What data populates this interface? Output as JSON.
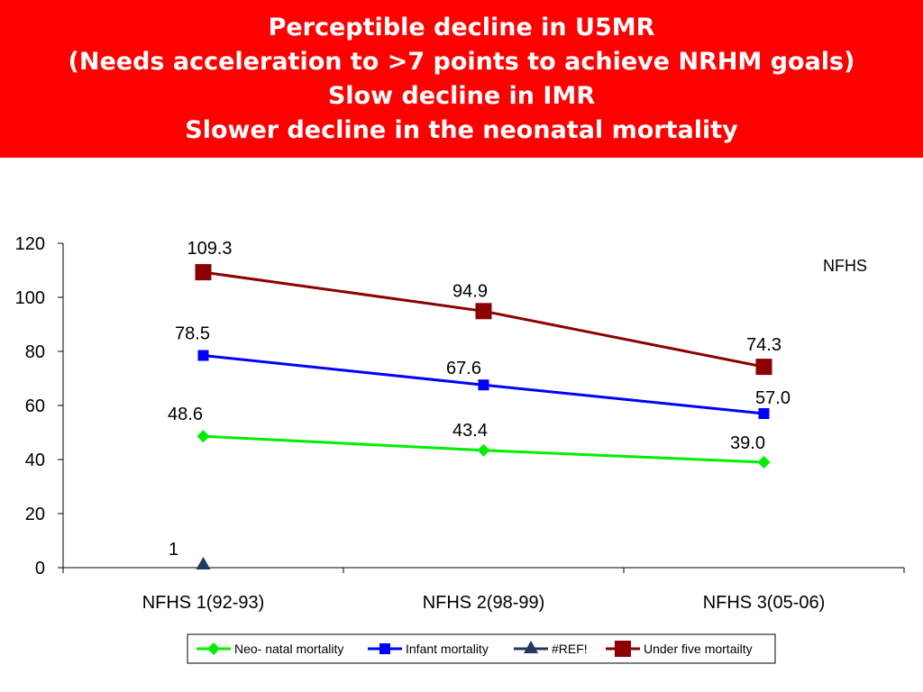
{
  "header": {
    "title_lines": [
      "Perceptible decline in U5MR",
      "(Needs acceleration to >7 points to achieve NRHM goals)",
      "Slow decline in IMR",
      "Slower decline in the neonatal mortality"
    ]
  },
  "colors": {
    "banner": "#ff0000",
    "neonatal": "#00ee00",
    "infant": "#0000ff",
    "ref": "#1f3a5f",
    "underfive": "#8b0000"
  },
  "chart_data": {
    "type": "line",
    "categories": [
      "NFHS 1(92-93)",
      "NFHS 2(98-99)",
      "NFHS 3(05-06)"
    ],
    "ylim": [
      0,
      120
    ],
    "yticks": [
      0,
      20,
      40,
      60,
      80,
      100,
      120
    ],
    "annotation": "NFHS",
    "legend_position": "bottom",
    "series": [
      {
        "name": "Neo- natal mortality",
        "values": [
          48.6,
          43.4,
          39.0
        ],
        "labels": [
          "48.6",
          "43.4",
          "39.0"
        ],
        "marker": "diamond",
        "color": "#00ee00"
      },
      {
        "name": "Infant mortality",
        "values": [
          78.5,
          67.6,
          57.0
        ],
        "labels": [
          "78.5",
          "67.6",
          "57.0"
        ],
        "marker": "square",
        "color": "#0000ff"
      },
      {
        "name": "#REF!",
        "values": [
          1,
          null,
          null
        ],
        "labels": [
          "1",
          "",
          ""
        ],
        "marker": "triangle",
        "color": "#1f3a5f"
      },
      {
        "name": "Under five mortailty",
        "values": [
          109.3,
          94.9,
          74.3
        ],
        "labels": [
          "109.3",
          "94.9",
          "74.3"
        ],
        "marker": "square-large",
        "color": "#8b0000"
      }
    ]
  }
}
